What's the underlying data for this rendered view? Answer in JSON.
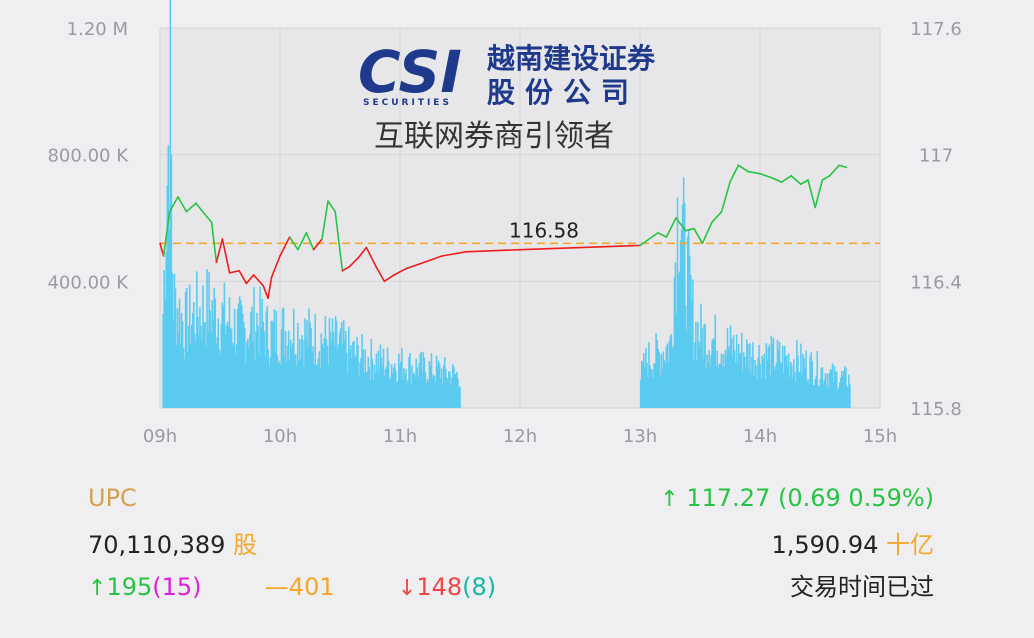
{
  "chart_data": {
    "type": "line+bar",
    "reference_price": 116.58,
    "reference_label": "116.58",
    "y_left_ticks": [
      "1.20 M",
      "800.00 K",
      "400.00 K"
    ],
    "y_left_max": 1200000,
    "y_right_ticks": [
      "117.6",
      "117",
      "116.4",
      "115.8"
    ],
    "y_right_range": [
      115.8,
      117.6
    ],
    "x_ticks": [
      "09h",
      "10h",
      "11h",
      "12h",
      "13h",
      "14h",
      "15h"
    ],
    "x_range": [
      9,
      15
    ],
    "price_series": [
      [
        9.0,
        116.58
      ],
      [
        9.03,
        116.52
      ],
      [
        9.08,
        116.73
      ],
      [
        9.15,
        116.8
      ],
      [
        9.22,
        116.73
      ],
      [
        9.3,
        116.77
      ],
      [
        9.37,
        116.72
      ],
      [
        9.43,
        116.68
      ],
      [
        9.47,
        116.49
      ],
      [
        9.52,
        116.6
      ],
      [
        9.58,
        116.44
      ],
      [
        9.66,
        116.45
      ],
      [
        9.72,
        116.39
      ],
      [
        9.78,
        116.43
      ],
      [
        9.86,
        116.38
      ],
      [
        9.9,
        116.32
      ],
      [
        9.93,
        116.42
      ],
      [
        10.0,
        116.52
      ],
      [
        10.08,
        116.61
      ],
      [
        10.15,
        116.55
      ],
      [
        10.22,
        116.63
      ],
      [
        10.28,
        116.55
      ],
      [
        10.35,
        116.6
      ],
      [
        10.4,
        116.78
      ],
      [
        10.46,
        116.73
      ],
      [
        10.52,
        116.45
      ],
      [
        10.58,
        116.47
      ],
      [
        10.65,
        116.51
      ],
      [
        10.72,
        116.56
      ],
      [
        10.8,
        116.47
      ],
      [
        10.87,
        116.4
      ],
      [
        10.95,
        116.43
      ],
      [
        11.05,
        116.46
      ],
      [
        11.15,
        116.48
      ],
      [
        11.25,
        116.5
      ],
      [
        11.35,
        116.52
      ],
      [
        11.45,
        116.53
      ],
      [
        11.55,
        116.54
      ],
      [
        12.0,
        116.55
      ],
      [
        12.5,
        116.56
      ],
      [
        13.0,
        116.57
      ],
      [
        13.05,
        116.59
      ],
      [
        13.15,
        116.63
      ],
      [
        13.22,
        116.61
      ],
      [
        13.3,
        116.7
      ],
      [
        13.38,
        116.64
      ],
      [
        13.45,
        116.65
      ],
      [
        13.52,
        116.58
      ],
      [
        13.6,
        116.68
      ],
      [
        13.68,
        116.73
      ],
      [
        13.75,
        116.87
      ],
      [
        13.82,
        116.95
      ],
      [
        13.9,
        116.92
      ],
      [
        14.0,
        116.91
      ],
      [
        14.1,
        116.89
      ],
      [
        14.18,
        116.87
      ],
      [
        14.26,
        116.9
      ],
      [
        14.34,
        116.86
      ],
      [
        14.4,
        116.88
      ],
      [
        14.46,
        116.75
      ],
      [
        14.52,
        116.88
      ],
      [
        14.58,
        116.9
      ],
      [
        14.66,
        116.95
      ],
      [
        14.72,
        116.94
      ]
    ],
    "volume_profile": [
      [
        9.02,
        300000
      ],
      [
        9.05,
        700000
      ],
      [
        9.08,
        1000000
      ],
      [
        9.1,
        350000
      ],
      [
        9.2,
        260000
      ],
      [
        9.3,
        300000
      ],
      [
        9.4,
        320000
      ],
      [
        9.5,
        290000
      ],
      [
        9.6,
        260000
      ],
      [
        9.7,
        240000
      ],
      [
        9.8,
        280000
      ],
      [
        9.9,
        230000
      ],
      [
        10.0,
        240000
      ],
      [
        10.1,
        250000
      ],
      [
        10.2,
        230000
      ],
      [
        10.3,
        220000
      ],
      [
        10.4,
        210000
      ],
      [
        10.5,
        200000
      ],
      [
        10.6,
        170000
      ],
      [
        10.7,
        160000
      ],
      [
        10.8,
        150000
      ],
      [
        10.9,
        140000
      ],
      [
        11.0,
        140000
      ],
      [
        11.1,
        130000
      ],
      [
        11.2,
        125000
      ],
      [
        11.3,
        120000
      ],
      [
        11.4,
        110000
      ],
      [
        11.5,
        100000
      ],
      [
        13.0,
        100000
      ],
      [
        13.05,
        150000
      ],
      [
        13.15,
        170000
      ],
      [
        13.25,
        200000
      ],
      [
        13.32,
        700000
      ],
      [
        13.36,
        500000
      ],
      [
        13.45,
        250000
      ],
      [
        13.55,
        220000
      ],
      [
        13.7,
        200000
      ],
      [
        13.9,
        170000
      ],
      [
        14.1,
        160000
      ],
      [
        14.3,
        150000
      ],
      [
        14.5,
        120000
      ],
      [
        14.6,
        100000
      ],
      [
        14.75,
        90000
      ]
    ]
  },
  "footer": {
    "index_name": "UPC",
    "change_arrow": "↑",
    "index_value": "117.27 (0.69 0.59%)",
    "volume_value": "70,110,389",
    "volume_unit": "股",
    "turnover_value": "1,590.94",
    "turnover_unit": "十亿",
    "up_arrow": "↑",
    "advances": "195",
    "advances_ceiling": "(15)",
    "unchanged_mark": "—",
    "unchanged": "401",
    "down_arrow": "↓",
    "declines": "148",
    "declines_floor": "(8)",
    "status": "交易时间已过"
  },
  "watermark": {
    "logo_text": "CSI",
    "logo_sub": "SECURITIES",
    "company_line1": "越南建设证券",
    "company_line2": "股份公司",
    "slogan": "互联网券商引领者"
  },
  "colors": {
    "volume_bar": "#5bcbf0",
    "up": "#27c443",
    "down": "#ee1c1c",
    "reference_line": "#f4a82a",
    "plot_bg": "#e7e7e9",
    "logo": "#1f3a8c"
  }
}
